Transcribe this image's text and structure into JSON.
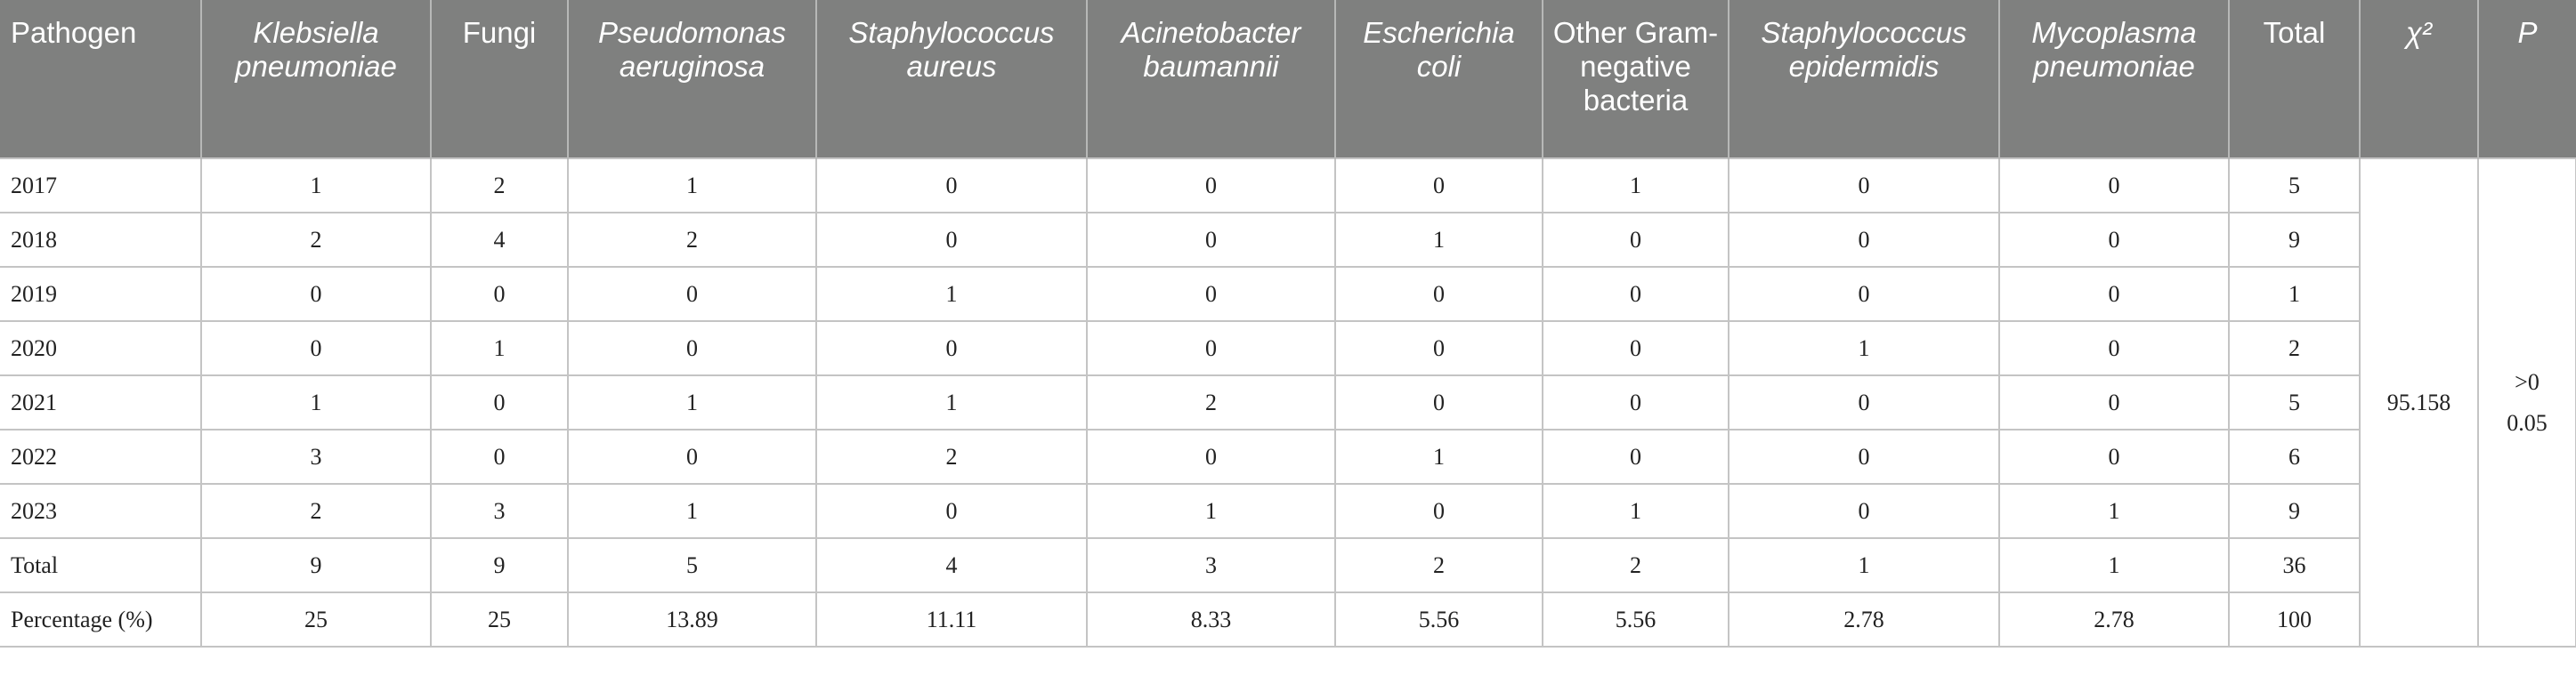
{
  "header": {
    "pathogen": "Pathogen",
    "klebsiella": "Klebsiella pneumoniae",
    "fungi": "Fungi",
    "pseudomonas": "Pseudomonas aeruginosa",
    "staph_aureus": "Staphylococcus aureus",
    "acinetobacter": "Acinetobacter baumannii",
    "ecoli": "Escherichia coli",
    "other_gram_negative": "Other Gram-negative bacteria",
    "staph_epidermidis": "Staphylococcus epidermidis",
    "mycoplasma": "Mycoplasma pneumoniae",
    "total": "Total",
    "chi2": "χ²",
    "p": "P"
  },
  "rows": [
    {
      "label": "2017",
      "values": [
        "1",
        "2",
        "1",
        "0",
        "0",
        "0",
        "1",
        "0",
        "0",
        "5"
      ]
    },
    {
      "label": "2018",
      "values": [
        "2",
        "4",
        "2",
        "0",
        "0",
        "1",
        "0",
        "0",
        "0",
        "9"
      ]
    },
    {
      "label": "2019",
      "values": [
        "0",
        "0",
        "0",
        "1",
        "0",
        "0",
        "0",
        "0",
        "0",
        "1"
      ]
    },
    {
      "label": "2020",
      "values": [
        "0",
        "1",
        "0",
        "0",
        "0",
        "0",
        "0",
        "1",
        "0",
        "2"
      ]
    },
    {
      "label": "2021",
      "values": [
        "1",
        "0",
        "1",
        "1",
        "2",
        "0",
        "0",
        "0",
        "0",
        "5"
      ]
    },
    {
      "label": "2022",
      "values": [
        "3",
        "0",
        "0",
        "2",
        "0",
        "1",
        "0",
        "0",
        "0",
        "6"
      ]
    },
    {
      "label": "2023",
      "values": [
        "2",
        "3",
        "1",
        "0",
        "1",
        "0",
        "1",
        "0",
        "1",
        "9"
      ]
    },
    {
      "label": "Total",
      "values": [
        "9",
        "9",
        "5",
        "4",
        "3",
        "2",
        "2",
        "1",
        "1",
        "36"
      ]
    },
    {
      "label": "Percentage (%)",
      "values": [
        "25",
        "25",
        "13.89",
        "11.11",
        "8.33",
        "5.56",
        "5.56",
        "2.78",
        "2.78",
        "100"
      ]
    }
  ],
  "stats": {
    "chi2_value": "95.158",
    "p_line1": ">0",
    "p_line2": "0.05"
  }
}
